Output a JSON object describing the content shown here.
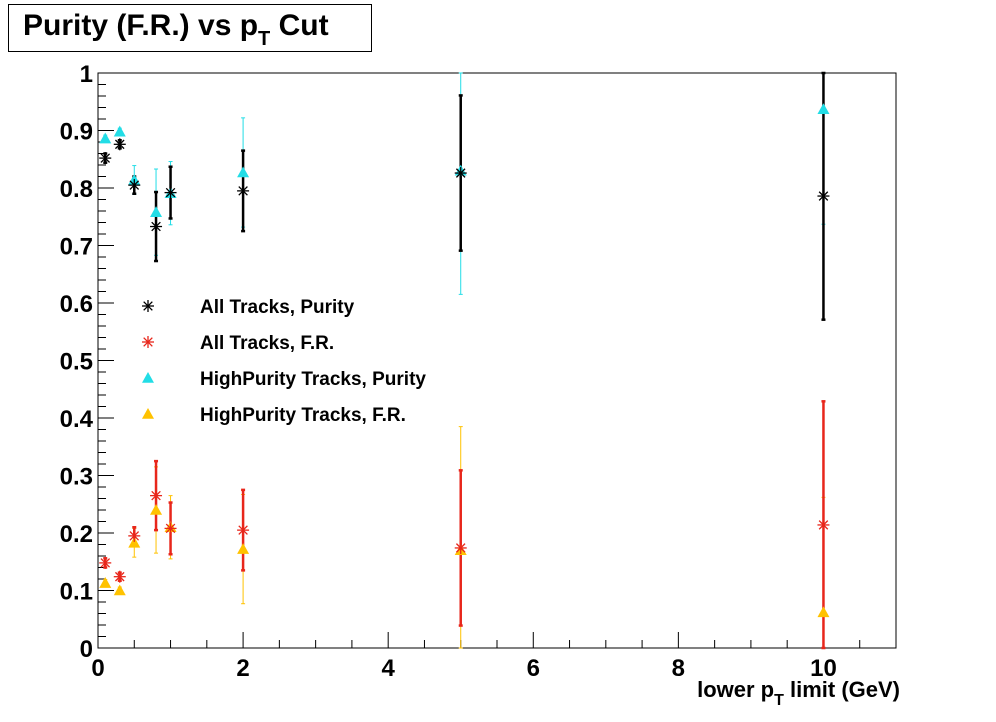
{
  "title": {
    "before": "Purity (F.R.) vs p",
    "sub": "T",
    "after": " Cut"
  },
  "chart_data": {
    "type": "scatter",
    "title": "Purity (F.R.) vs pT Cut",
    "xlabel": {
      "before": "lower p",
      "sub": "T",
      "after": " limit (GeV)"
    },
    "ylabel": "",
    "xlim": [
      0,
      11
    ],
    "ylim": [
      0,
      1
    ],
    "x_ticks": [
      0,
      2,
      4,
      6,
      8,
      10
    ],
    "y_ticks": [
      0,
      0.1,
      0.2,
      0.3,
      0.4,
      0.5,
      0.6,
      0.7,
      0.8,
      0.9,
      1
    ],
    "x_tick_labels": [
      "0",
      "2",
      "4",
      "6",
      "8",
      "10"
    ],
    "y_tick_labels": [
      "0",
      "0.1",
      "0.2",
      "0.3",
      "0.4",
      "0.5",
      "0.6",
      "0.7",
      "0.8",
      "0.9",
      "1"
    ],
    "x": [
      0.1,
      0.3,
      0.5,
      0.8,
      1,
      2,
      5,
      10
    ],
    "legend_position": "center-left",
    "series": [
      {
        "name": "All Tracks, Purity",
        "marker": "star",
        "color": "#000000",
        "values": [
          0.852,
          0.876,
          0.805,
          0.733,
          0.792,
          0.795,
          0.826,
          0.786
        ],
        "errors": [
          0.008,
          0.007,
          0.015,
          0.06,
          0.045,
          0.07,
          0.135,
          0.215
        ]
      },
      {
        "name": "All Tracks, F.R.",
        "marker": "star",
        "color": "#e8261b",
        "values": [
          0.148,
          0.124,
          0.195,
          0.265,
          0.208,
          0.205,
          0.174,
          0.214
        ],
        "errors": [
          0.008,
          0.007,
          0.015,
          0.06,
          0.045,
          0.07,
          0.135,
          0.215
        ]
      },
      {
        "name": "HighPurity Tracks, Purity",
        "marker": "triangle",
        "color": "#22dde6",
        "values": [
          0.886,
          0.898,
          0.814,
          0.758,
          0.791,
          0.827,
          0.83,
          0.937
        ],
        "errors": [
          0.006,
          0.006,
          0.025,
          0.075,
          0.055,
          0.095,
          0.215,
          0.2
        ]
      },
      {
        "name": "HighPurity Tracks, F.R.",
        "marker": "triangle",
        "color": "#ffc200",
        "values": [
          0.113,
          0.1,
          0.183,
          0.24,
          0.21,
          0.172,
          0.17,
          0.062
        ],
        "errors": [
          0.006,
          0.006,
          0.025,
          0.075,
          0.055,
          0.095,
          0.215,
          0.2
        ]
      }
    ]
  }
}
